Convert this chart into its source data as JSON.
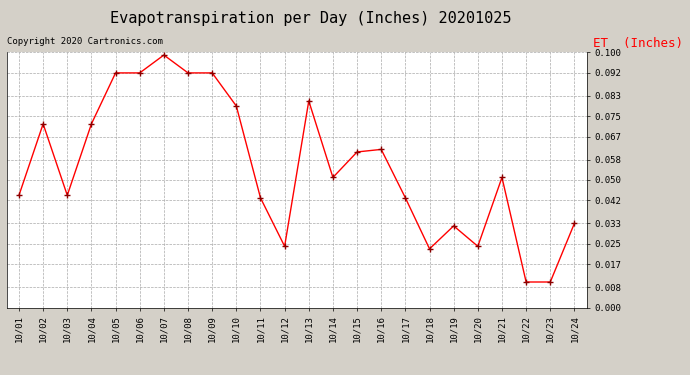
{
  "title": "Evapotranspiration per Day (Inches) 20201025",
  "copyright_text": "Copyright 2020 Cartronics.com",
  "legend_label": "ET  (Inches)",
  "x_labels": [
    "10/01",
    "10/02",
    "10/03",
    "10/04",
    "10/05",
    "10/06",
    "10/07",
    "10/08",
    "10/09",
    "10/10",
    "10/11",
    "10/12",
    "10/13",
    "10/14",
    "10/15",
    "10/16",
    "10/17",
    "10/18",
    "10/19",
    "10/20",
    "10/21",
    "10/22",
    "10/23",
    "10/24"
  ],
  "y_values": [
    0.044,
    0.072,
    0.044,
    0.072,
    0.092,
    0.092,
    0.099,
    0.092,
    0.092,
    0.079,
    0.043,
    0.024,
    0.081,
    0.051,
    0.061,
    0.062,
    0.043,
    0.023,
    0.032,
    0.024,
    0.051,
    0.01,
    0.01,
    0.033
  ],
  "line_color": "red",
  "marker": "+",
  "marker_color": "darkred",
  "ylim": [
    0.0,
    0.1
  ],
  "yticks": [
    0.0,
    0.008,
    0.017,
    0.025,
    0.033,
    0.042,
    0.05,
    0.058,
    0.067,
    0.075,
    0.083,
    0.092,
    0.1
  ],
  "bg_color": "#d4d0c8",
  "plot_bg_color": "#ffffff",
  "grid_color": "#aaaaaa",
  "title_fontsize": 11,
  "copyright_fontsize": 6.5,
  "legend_fontsize": 9,
  "tick_fontsize": 6.5
}
